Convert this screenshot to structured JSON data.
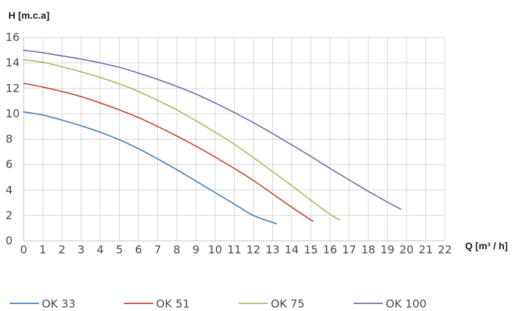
{
  "chart_data": {
    "type": "line",
    "title": "",
    "xlabel": "Q [m³ / h]",
    "ylabel": "H [m.c.a]",
    "xlim": [
      0,
      22
    ],
    "ylim": [
      0,
      16
    ],
    "x_ticks": [
      0,
      1,
      2,
      3,
      4,
      5,
      6,
      7,
      8,
      9,
      10,
      11,
      12,
      13,
      14,
      15,
      16,
      17,
      18,
      19,
      20,
      21,
      22
    ],
    "y_ticks": [
      0,
      2,
      4,
      6,
      8,
      10,
      12,
      14,
      16
    ],
    "grid": true,
    "legend_position": "bottom",
    "series": [
      {
        "name": "OK 33",
        "color": "#3a78b8",
        "x": [
          0,
          1,
          2,
          3,
          4,
          5,
          6,
          7,
          8,
          9,
          10,
          11,
          12,
          13.2
        ],
        "y": [
          10.15,
          9.9,
          9.5,
          9.05,
          8.55,
          7.95,
          7.25,
          6.45,
          5.6,
          4.7,
          3.8,
          2.9,
          2.0,
          1.35
        ]
      },
      {
        "name": "OK 51",
        "color": "#c0392b",
        "x": [
          0,
          1,
          2,
          3,
          4,
          5,
          6,
          7,
          8,
          9,
          10,
          11,
          12,
          13,
          14,
          15.1
        ],
        "y": [
          12.4,
          12.1,
          11.75,
          11.35,
          10.85,
          10.3,
          9.7,
          9.0,
          8.25,
          7.45,
          6.6,
          5.7,
          4.75,
          3.7,
          2.65,
          1.55
        ]
      },
      {
        "name": "OK 75",
        "color": "#9bbb59",
        "x": [
          0,
          1,
          2,
          3,
          4,
          5,
          6,
          7,
          8,
          9,
          10,
          11,
          12,
          13,
          14,
          15,
          16,
          16.5
        ],
        "y": [
          14.25,
          14.05,
          13.7,
          13.3,
          12.85,
          12.35,
          11.75,
          11.05,
          10.3,
          9.45,
          8.55,
          7.6,
          6.55,
          5.45,
          4.35,
          3.2,
          2.1,
          1.65
        ]
      },
      {
        "name": "OK 100",
        "color": "#7a5b9e",
        "x": [
          0,
          1,
          2,
          3,
          4,
          5,
          6,
          7,
          8,
          9,
          10,
          11,
          12,
          13,
          14,
          15,
          16,
          17,
          18,
          19,
          19.7
        ],
        "y": [
          15.0,
          14.8,
          14.55,
          14.3,
          14.0,
          13.65,
          13.2,
          12.7,
          12.15,
          11.55,
          10.85,
          10.1,
          9.3,
          8.45,
          7.55,
          6.65,
          5.7,
          4.8,
          3.9,
          3.05,
          2.5
        ]
      }
    ]
  }
}
